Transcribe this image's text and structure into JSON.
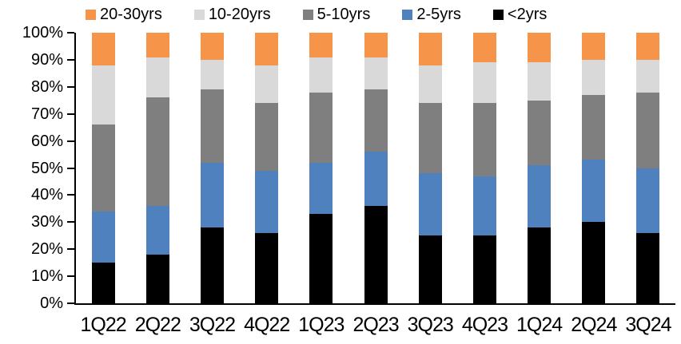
{
  "legend": {
    "items": [
      {
        "label": "20-30yrs",
        "color": "#F6954A"
      },
      {
        "label": "10-20yrs",
        "color": "#D9D9D9"
      },
      {
        "label": "5-10yrs",
        "color": "#7F7F7F"
      },
      {
        "label": "2-5yrs",
        "color": "#4E81BD"
      },
      {
        "label": "<2yrs",
        "color": "#000000"
      }
    ]
  },
  "chart_data": {
    "type": "bar",
    "variant": "100%-stacked-column",
    "title": "",
    "xlabel": "",
    "ylabel": "",
    "unit": "%",
    "grid": false,
    "legend_position": "top",
    "categories": [
      "1Q22",
      "2Q22",
      "3Q22",
      "4Q22",
      "1Q23",
      "2Q23",
      "3Q23",
      "4Q23",
      "1Q24",
      "2Q24",
      "3Q24"
    ],
    "series": [
      {
        "name": "<2yrs",
        "color": "#000000",
        "values": [
          15,
          18,
          28,
          26,
          33,
          36,
          25,
          25,
          28,
          30,
          26
        ]
      },
      {
        "name": "2-5yrs",
        "color": "#4E81BD",
        "values": [
          19,
          18,
          24,
          23,
          19,
          20,
          23,
          22,
          23,
          23,
          24
        ]
      },
      {
        "name": "5-10yrs",
        "color": "#7F7F7F",
        "values": [
          32,
          40,
          27,
          25,
          26,
          23,
          26,
          27,
          24,
          24,
          28
        ]
      },
      {
        "name": "10-20yrs",
        "color": "#D9D9D9",
        "values": [
          22,
          15,
          11,
          14,
          13,
          12,
          14,
          15,
          14,
          13,
          12
        ]
      },
      {
        "name": "20-30yrs",
        "color": "#F6954A",
        "values": [
          12,
          9,
          10,
          12,
          9,
          9,
          12,
          11,
          11,
          10,
          10
        ]
      }
    ],
    "y_axis": {
      "min": 0,
      "max": 100,
      "tick_step": 10,
      "tick_labels": [
        "0%",
        "10%",
        "20%",
        "30%",
        "40%",
        "50%",
        "60%",
        "70%",
        "80%",
        "90%",
        "100%"
      ]
    }
  }
}
